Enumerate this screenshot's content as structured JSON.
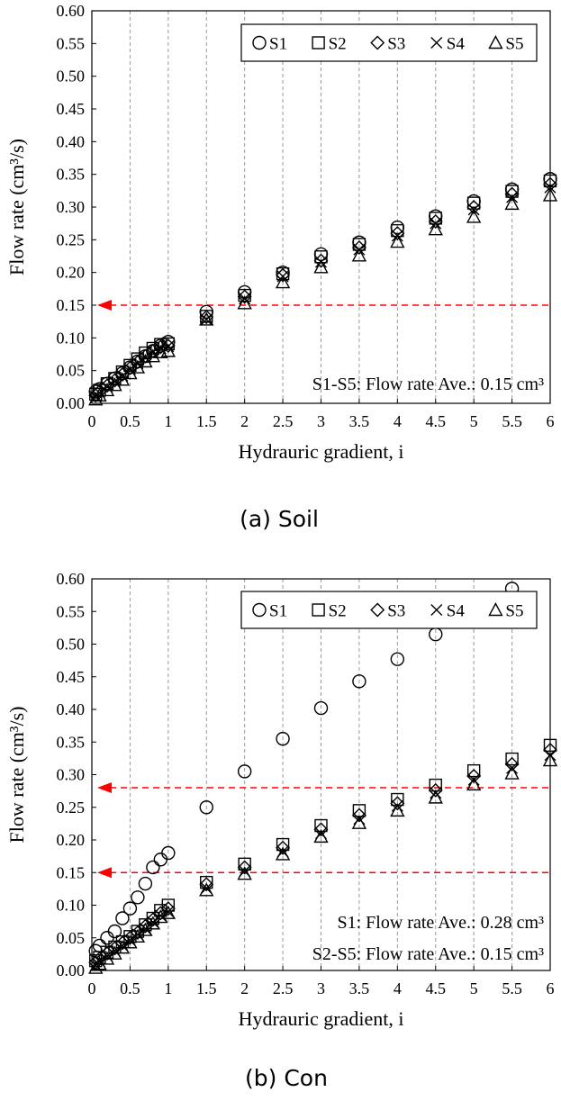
{
  "chart_data": [
    {
      "type": "scatter",
      "caption": "(a)  Soil",
      "xlabel": "Hydrauric gradient, i",
      "ylabel": "Flow rate (cm³/s)",
      "xlim": [
        0,
        6
      ],
      "ylim": [
        0,
        0.6
      ],
      "xticks": [
        "0",
        "0.5",
        "1",
        "1.5",
        "2",
        "2.5",
        "3",
        "3.5",
        "4",
        "4.5",
        "5",
        "5.5",
        "6"
      ],
      "yticks": [
        "0.00",
        "0.05",
        "0.10",
        "0.15",
        "0.20",
        "0.25",
        "0.30",
        "0.35",
        "0.40",
        "0.45",
        "0.50",
        "0.55",
        "0.60"
      ],
      "grid": "vertical dashed",
      "legend_position": "top-right",
      "reference_lines": [
        0.15
      ],
      "reference_color": "#ff0000",
      "annotations": [
        "S1-S5:  Flow rate Ave.: 0.15  cm³"
      ],
      "series": [
        {
          "name": "S1",
          "marker": "circle",
          "x": [
            0.05,
            0.1,
            0.2,
            0.3,
            0.4,
            0.5,
            0.6,
            0.7,
            0.8,
            0.9,
            1,
            1.5,
            2,
            2.5,
            3,
            3.5,
            4,
            4.5,
            5,
            5.5,
            6
          ],
          "y": [
            0.018,
            0.022,
            0.03,
            0.038,
            0.046,
            0.055,
            0.064,
            0.072,
            0.08,
            0.088,
            0.094,
            0.14,
            0.17,
            0.2,
            0.228,
            0.246,
            0.269,
            0.286,
            0.309,
            0.327,
            0.343
          ]
        },
        {
          "name": "S2",
          "marker": "square",
          "x": [
            0.05,
            0.1,
            0.2,
            0.3,
            0.4,
            0.5,
            0.6,
            0.7,
            0.8,
            0.9,
            1,
            1.5,
            2,
            2.5,
            3,
            3.5,
            4,
            4.5,
            5,
            5.5,
            6
          ],
          "y": [
            0.014,
            0.02,
            0.03,
            0.038,
            0.048,
            0.058,
            0.068,
            0.077,
            0.084,
            0.09,
            0.091,
            0.133,
            0.165,
            0.198,
            0.224,
            0.243,
            0.264,
            0.283,
            0.306,
            0.324,
            0.34
          ]
        },
        {
          "name": "S3",
          "marker": "diamond",
          "x": [
            0.05,
            0.1,
            0.2,
            0.3,
            0.4,
            0.5,
            0.6,
            0.7,
            0.8,
            0.9,
            1,
            1.5,
            2,
            2.5,
            3,
            3.5,
            4,
            4.5,
            5,
            5.5,
            6
          ],
          "y": [
            0.012,
            0.018,
            0.027,
            0.035,
            0.044,
            0.054,
            0.063,
            0.072,
            0.08,
            0.086,
            0.088,
            0.132,
            0.163,
            0.196,
            0.218,
            0.238,
            0.26,
            0.278,
            0.3,
            0.32,
            0.335
          ]
        },
        {
          "name": "S4",
          "marker": "x",
          "x": [
            0.05,
            0.1,
            0.2,
            0.3,
            0.4,
            0.5,
            0.6,
            0.7,
            0.8,
            0.9,
            1,
            1.5,
            2,
            2.5,
            3,
            3.5,
            4,
            4.5,
            5,
            5.5,
            6
          ],
          "y": [
            0.01,
            0.016,
            0.025,
            0.033,
            0.042,
            0.052,
            0.061,
            0.07,
            0.078,
            0.084,
            0.087,
            0.128,
            0.16,
            0.194,
            0.216,
            0.235,
            0.256,
            0.275,
            0.296,
            0.315,
            0.33
          ]
        },
        {
          "name": "S5",
          "marker": "triangle",
          "x": [
            0.05,
            0.1,
            0.2,
            0.3,
            0.4,
            0.5,
            0.6,
            0.7,
            0.8,
            0.9,
            1,
            1.5,
            2,
            2.5,
            3,
            3.5,
            4,
            4.5,
            5,
            5.5,
            6
          ],
          "y": [
            0.006,
            0.012,
            0.02,
            0.028,
            0.036,
            0.046,
            0.055,
            0.064,
            0.072,
            0.078,
            0.08,
            0.128,
            0.153,
            0.185,
            0.208,
            0.226,
            0.247,
            0.266,
            0.285,
            0.305,
            0.318
          ]
        }
      ]
    },
    {
      "type": "scatter",
      "caption": "(b)    Con",
      "xlabel": "Hydrauric gradient, i",
      "ylabel": "Flow rate (cm³/s)",
      "xlim": [
        0,
        6
      ],
      "ylim": [
        0,
        0.6
      ],
      "xticks": [
        "0",
        "0.5",
        "1",
        "1.5",
        "2",
        "2.5",
        "3",
        "3.5",
        "4",
        "4.5",
        "5",
        "5.5",
        "6"
      ],
      "yticks": [
        "0.00",
        "0.05",
        "0.10",
        "0.15",
        "0.20",
        "0.25",
        "0.30",
        "0.35",
        "0.40",
        "0.45",
        "0.50",
        "0.55",
        "0.60"
      ],
      "grid": "vertical dashed",
      "legend_position": "top-right",
      "reference_lines": [
        0.28,
        0.15
      ],
      "reference_color": "#ff0000",
      "annotations": [
        "S1: Flow rate Ave.: 0.28  cm³",
        "S2-S5:  Flow rate Ave.: 0.15  cm³"
      ],
      "series": [
        {
          "name": "S1",
          "marker": "circle",
          "x": [
            0.05,
            0.1,
            0.2,
            0.3,
            0.4,
            0.5,
            0.6,
            0.7,
            0.8,
            0.9,
            1,
            1.5,
            2,
            2.5,
            3,
            3.5,
            4,
            4.5,
            5.5
          ],
          "y": [
            0.03,
            0.038,
            0.05,
            0.06,
            0.08,
            0.095,
            0.112,
            0.133,
            0.158,
            0.17,
            0.18,
            0.25,
            0.305,
            0.355,
            0.402,
            0.443,
            0.477,
            0.515,
            0.585
          ]
        },
        {
          "name": "S2",
          "marker": "square",
          "x": [
            0.05,
            0.1,
            0.2,
            0.3,
            0.4,
            0.5,
            0.6,
            0.7,
            0.8,
            0.9,
            1,
            1.5,
            2,
            2.5,
            3,
            3.5,
            4,
            4.5,
            5,
            5.5,
            6
          ],
          "y": [
            0.015,
            0.02,
            0.028,
            0.036,
            0.044,
            0.052,
            0.06,
            0.07,
            0.08,
            0.092,
            0.1,
            0.135,
            0.163,
            0.193,
            0.222,
            0.245,
            0.262,
            0.284,
            0.306,
            0.324,
            0.345
          ]
        },
        {
          "name": "S3",
          "marker": "diamond",
          "x": [
            0.05,
            0.1,
            0.2,
            0.3,
            0.4,
            0.5,
            0.6,
            0.7,
            0.8,
            0.9,
            1,
            1.5,
            2,
            2.5,
            3,
            3.5,
            4,
            4.5,
            5,
            5.5,
            6
          ],
          "y": [
            0.012,
            0.018,
            0.026,
            0.034,
            0.042,
            0.05,
            0.058,
            0.068,
            0.078,
            0.088,
            0.095,
            0.132,
            0.158,
            0.188,
            0.216,
            0.238,
            0.256,
            0.276,
            0.298,
            0.316,
            0.338
          ]
        },
        {
          "name": "S4",
          "marker": "x",
          "x": [
            0.05,
            0.1,
            0.2,
            0.3,
            0.4,
            0.5,
            0.6,
            0.7,
            0.8,
            0.9,
            1,
            1.5,
            2,
            2.5,
            3,
            3.5,
            4,
            4.5,
            5,
            5.5,
            6
          ],
          "y": [
            0.008,
            0.014,
            0.022,
            0.03,
            0.038,
            0.046,
            0.055,
            0.064,
            0.074,
            0.084,
            0.09,
            0.126,
            0.152,
            0.182,
            0.21,
            0.232,
            0.252,
            0.272,
            0.292,
            0.31,
            0.33
          ]
        },
        {
          "name": "S5",
          "marker": "triangle",
          "x": [
            0.05,
            0.1,
            0.2,
            0.3,
            0.4,
            0.5,
            0.6,
            0.7,
            0.8,
            0.9,
            1,
            1.5,
            2,
            2.5,
            3,
            3.5,
            4,
            4.5,
            5,
            5.5,
            6
          ],
          "y": [
            0.004,
            0.01,
            0.018,
            0.026,
            0.035,
            0.043,
            0.052,
            0.062,
            0.072,
            0.082,
            0.088,
            0.123,
            0.148,
            0.178,
            0.205,
            0.226,
            0.245,
            0.265,
            0.285,
            0.302,
            0.322
          ]
        }
      ]
    }
  ]
}
